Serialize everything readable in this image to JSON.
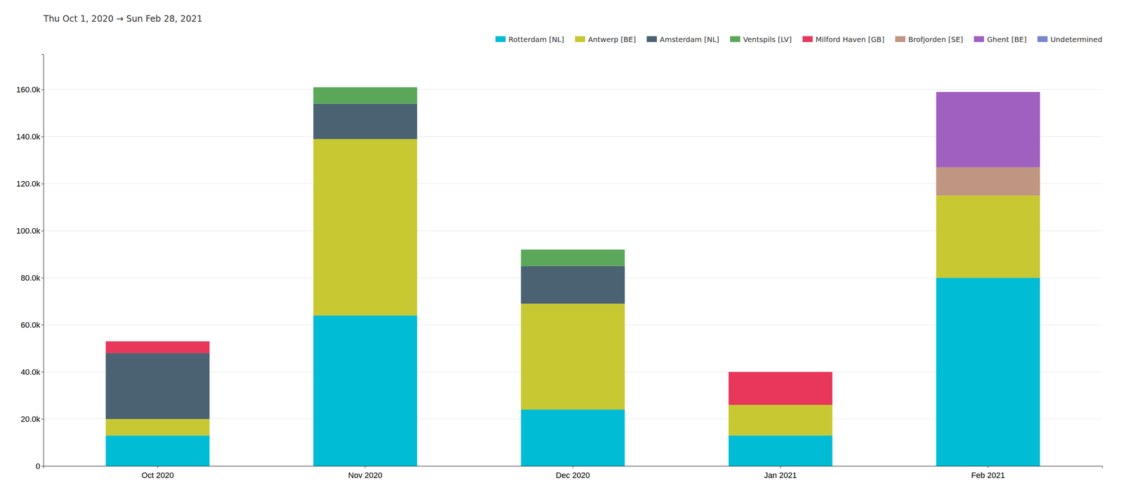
{
  "chart_data": {
    "type": "bar",
    "stacked": true,
    "subtitle": "Thu Oct 1, 2020  →  Sun Feb 28, 2021",
    "categories": [
      "Oct 2020",
      "Nov 2020",
      "Dec 2020",
      "Jan 2021",
      "Feb 2021"
    ],
    "series": [
      {
        "name": "Rotterdam [NL]",
        "color": "#00bcd4",
        "values": [
          13000,
          64000,
          24000,
          13000,
          80000
        ]
      },
      {
        "name": "Antwerp [BE]",
        "color": "#c8c832",
        "values": [
          7000,
          75000,
          45000,
          13000,
          35000
        ]
      },
      {
        "name": "Amsterdam [NL]",
        "color": "#4a6272",
        "values": [
          28000,
          15000,
          16000,
          0,
          0
        ]
      },
      {
        "name": "Ventspils [LV]",
        "color": "#5ba85a",
        "values": [
          0,
          7000,
          7000,
          0,
          0
        ]
      },
      {
        "name": "Milford Haven [GB]",
        "color": "#e8375a",
        "values": [
          5000,
          0,
          0,
          14000,
          0
        ]
      },
      {
        "name": "Brofjorden [SE]",
        "color": "#c09682",
        "values": [
          0,
          0,
          0,
          0,
          12000
        ]
      },
      {
        "name": "Ghent [BE]",
        "color": "#a060c0",
        "values": [
          0,
          0,
          0,
          0,
          32000
        ]
      },
      {
        "name": "Undetermined",
        "color": "#7986cb",
        "values": [
          0,
          0,
          0,
          0,
          0
        ]
      }
    ],
    "ylim": [
      0,
      175000
    ],
    "yticks": [
      0,
      {
        "value": 20000,
        "label": "20.0k"
      },
      {
        "value": 40000,
        "label": "40.0k"
      },
      {
        "value": 60000,
        "label": "60.0k"
      },
      {
        "value": 80000,
        "label": "80.0k"
      },
      {
        "value": 100000,
        "label": "100.0k"
      },
      {
        "value": 120000,
        "label": "120.0k"
      },
      {
        "value": 140000,
        "label": "140.0k"
      },
      {
        "value": 160000,
        "label": "160.0k"
      }
    ],
    "grid": true,
    "legend": "top-right"
  }
}
